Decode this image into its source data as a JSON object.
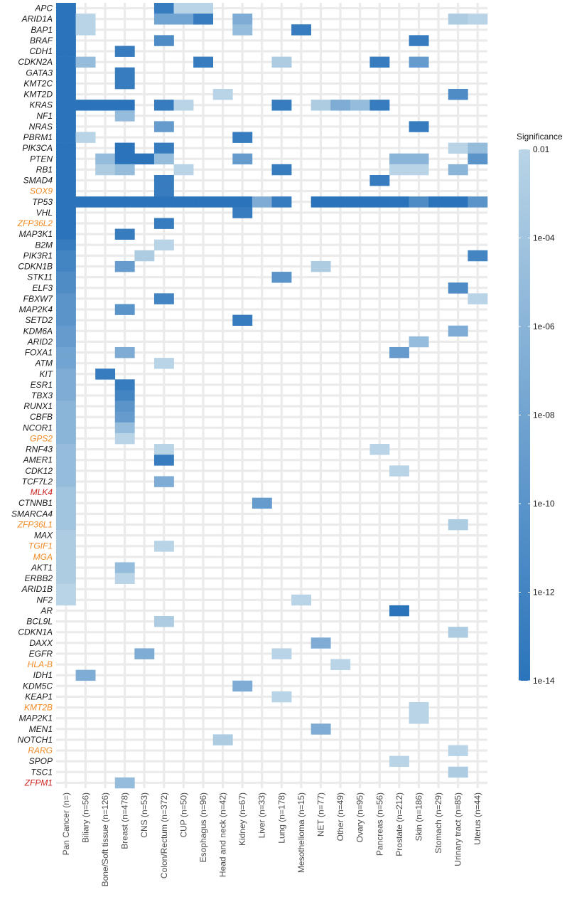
{
  "chart_data": {
    "type": "heatmap",
    "title": "",
    "xlabel": "",
    "ylabel": "",
    "columns": [
      "Pan Cancer (n=)",
      "Biliary (n=56)",
      "Bone/Soft tissue (n=126)",
      "Breast (n=478)",
      "CNS (n=53)",
      "Colon/Rectum (n=372)",
      "CUP (n=50)",
      "Esophagus (n=96)",
      "Head and neck (n=42)",
      "Kidney (n=67)",
      "Liver (n=33)",
      "Lung (n=178)",
      "Mesothelioma (n=15)",
      "NET (n=77)",
      "Other (n=49)",
      "Ovary (n=95)",
      "Pancreas (n=56)",
      "Prostate (n=212)",
      "Skin (n=186)",
      "Stomach (n=29)",
      "Urinary tract (n=85)",
      "Uterus (n=44)"
    ],
    "rows": [
      {
        "gene": "APC",
        "color": "#1a1a1a",
        "cells": [
          [
            0,
            1e-14
          ],
          [
            5,
            1e-13
          ],
          [
            6,
            0.01
          ],
          [
            7,
            0.01
          ]
        ]
      },
      {
        "gene": "ARID1A",
        "color": "#1a1a1a",
        "cells": [
          [
            0,
            1e-14
          ],
          [
            1,
            0.01
          ],
          [
            5,
            1e-08
          ],
          [
            6,
            1e-08
          ],
          [
            7,
            1e-13
          ],
          [
            9,
            1e-07
          ],
          [
            20,
            0.001
          ],
          [
            21,
            0.01
          ]
        ]
      },
      {
        "gene": "BAP1",
        "color": "#1a1a1a",
        "cells": [
          [
            0,
            1e-14
          ],
          [
            1,
            0.01
          ],
          [
            9,
            1e-05
          ],
          [
            12,
            1e-13
          ]
        ]
      },
      {
        "gene": "BRAF",
        "color": "#1a1a1a",
        "cells": [
          [
            0,
            1e-14
          ],
          [
            5,
            1e-11
          ],
          [
            18,
            1e-13
          ]
        ]
      },
      {
        "gene": "CDH1",
        "color": "#1a1a1a",
        "cells": [
          [
            0,
            1e-14
          ],
          [
            3,
            1e-13
          ]
        ]
      },
      {
        "gene": "CDKN2A",
        "color": "#1a1a1a",
        "cells": [
          [
            0,
            1e-14
          ],
          [
            1,
            1e-05
          ],
          [
            7,
            1e-13
          ],
          [
            11,
            0.001
          ],
          [
            16,
            1e-13
          ],
          [
            18,
            1e-09
          ]
        ]
      },
      {
        "gene": "GATA3",
        "color": "#1a1a1a",
        "cells": [
          [
            0,
            1e-14
          ],
          [
            3,
            1e-13
          ]
        ]
      },
      {
        "gene": "KMT2C",
        "color": "#1a1a1a",
        "cells": [
          [
            0,
            1e-14
          ],
          [
            3,
            1e-13
          ]
        ]
      },
      {
        "gene": "KMT2D",
        "color": "#1a1a1a",
        "cells": [
          [
            0,
            1e-14
          ],
          [
            8,
            0.01
          ],
          [
            20,
            1e-11
          ]
        ]
      },
      {
        "gene": "KRAS",
        "color": "#1a1a1a",
        "cells": [
          [
            0,
            1e-14
          ],
          [
            1,
            1e-14
          ],
          [
            2,
            1e-14
          ],
          [
            3,
            1e-14
          ],
          [
            5,
            1e-13
          ],
          [
            6,
            0.01
          ],
          [
            11,
            1e-13
          ],
          [
            13,
            0.001
          ],
          [
            14,
            1e-07
          ],
          [
            15,
            1e-05
          ],
          [
            16,
            1e-13
          ]
        ]
      },
      {
        "gene": "NF1",
        "color": "#1a1a1a",
        "cells": [
          [
            0,
            1e-14
          ],
          [
            3,
            1e-05
          ]
        ]
      },
      {
        "gene": "NRAS",
        "color": "#1a1a1a",
        "cells": [
          [
            0,
            1e-14
          ],
          [
            5,
            1e-09
          ],
          [
            18,
            1e-13
          ]
        ]
      },
      {
        "gene": "PBRM1",
        "color": "#1a1a1a",
        "cells": [
          [
            0,
            1e-14
          ],
          [
            1,
            0.01
          ],
          [
            9,
            1e-13
          ]
        ]
      },
      {
        "gene": "PIK3CA",
        "color": "#1a1a1a",
        "cells": [
          [
            0,
            1e-14
          ],
          [
            3,
            1e-14
          ],
          [
            5,
            1e-13
          ],
          [
            20,
            0.01
          ],
          [
            21,
            1e-05
          ]
        ]
      },
      {
        "gene": "PTEN",
        "color": "#1a1a1a",
        "cells": [
          [
            0,
            1e-14
          ],
          [
            2,
            1e-05
          ],
          [
            3,
            1e-14
          ],
          [
            4,
            1e-14
          ],
          [
            5,
            1e-05
          ],
          [
            9,
            1e-09
          ],
          [
            17,
            1e-06
          ],
          [
            18,
            1e-06
          ],
          [
            21,
            1e-10
          ]
        ]
      },
      {
        "gene": "RB1",
        "color": "#1a1a1a",
        "cells": [
          [
            0,
            1e-14
          ],
          [
            2,
            0.001
          ],
          [
            3,
            1e-05
          ],
          [
            6,
            0.01
          ],
          [
            11,
            1e-13
          ],
          [
            17,
            0.01
          ],
          [
            18,
            0.01
          ],
          [
            20,
            1e-06
          ]
        ]
      },
      {
        "gene": "SMAD4",
        "color": "#1a1a1a",
        "cells": [
          [
            0,
            1e-14
          ],
          [
            5,
            1e-13
          ],
          [
            16,
            1e-13
          ]
        ]
      },
      {
        "gene": "SOX9",
        "color": "#f08a24",
        "cells": [
          [
            0,
            1e-14
          ],
          [
            5,
            1e-13
          ]
        ]
      },
      {
        "gene": "TP53",
        "color": "#1a1a1a",
        "cells": [
          [
            0,
            1e-14
          ],
          [
            1,
            1e-14
          ],
          [
            2,
            1e-14
          ],
          [
            3,
            1e-14
          ],
          [
            4,
            1e-14
          ],
          [
            5,
            1e-14
          ],
          [
            6,
            1e-14
          ],
          [
            7,
            1e-14
          ],
          [
            8,
            1e-14
          ],
          [
            9,
            1e-14
          ],
          [
            10,
            1e-07
          ],
          [
            11,
            1e-13
          ],
          [
            13,
            1e-14
          ],
          [
            14,
            1e-14
          ],
          [
            15,
            1e-14
          ],
          [
            16,
            1e-14
          ],
          [
            17,
            1e-14
          ],
          [
            18,
            1e-11
          ],
          [
            19,
            1e-14
          ],
          [
            20,
            1e-14
          ],
          [
            21,
            1e-10
          ]
        ]
      },
      {
        "gene": "VHL",
        "color": "#1a1a1a",
        "cells": [
          [
            0,
            1e-14
          ],
          [
            9,
            1e-13
          ]
        ]
      },
      {
        "gene": "ZFP36L2",
        "color": "#f08a24",
        "cells": [
          [
            0,
            1e-14
          ],
          [
            5,
            1e-13
          ]
        ]
      },
      {
        "gene": "MAP3K1",
        "color": "#1a1a1a",
        "cells": [
          [
            0,
            1e-14
          ],
          [
            3,
            1e-13
          ]
        ]
      },
      {
        "gene": "B2M",
        "color": "#1a1a1a",
        "cells": [
          [
            0,
            1e-13
          ],
          [
            5,
            0.01
          ]
        ]
      },
      {
        "gene": "PIK3R1",
        "color": "#1a1a1a",
        "cells": [
          [
            0,
            1e-12
          ],
          [
            4,
            0.001
          ],
          [
            21,
            1e-12
          ]
        ]
      },
      {
        "gene": "CDKN1B",
        "color": "#1a1a1a",
        "cells": [
          [
            0,
            1e-12
          ],
          [
            3,
            1e-09
          ],
          [
            13,
            0.001
          ]
        ]
      },
      {
        "gene": "STK11",
        "color": "#1a1a1a",
        "cells": [
          [
            0,
            1e-11
          ],
          [
            11,
            1e-10
          ]
        ]
      },
      {
        "gene": "ELF3",
        "color": "#1a1a1a",
        "cells": [
          [
            0,
            1e-11
          ],
          [
            20,
            1e-11
          ]
        ]
      },
      {
        "gene": "FBXW7",
        "color": "#1a1a1a",
        "cells": [
          [
            0,
            1e-10
          ],
          [
            5,
            1e-12
          ],
          [
            21,
            0.01
          ]
        ]
      },
      {
        "gene": "MAP2K4",
        "color": "#1a1a1a",
        "cells": [
          [
            0,
            1e-10
          ],
          [
            3,
            1e-10
          ]
        ]
      },
      {
        "gene": "SETD2",
        "color": "#1a1a1a",
        "cells": [
          [
            0,
            1e-10
          ],
          [
            9,
            1e-13
          ]
        ]
      },
      {
        "gene": "KDM6A",
        "color": "#1a1a1a",
        "cells": [
          [
            0,
            1e-09
          ],
          [
            20,
            1e-07
          ]
        ]
      },
      {
        "gene": "ARID2",
        "color": "#1a1a1a",
        "cells": [
          [
            0,
            1e-09
          ],
          [
            18,
            1e-05
          ]
        ]
      },
      {
        "gene": "FOXA1",
        "color": "#1a1a1a",
        "cells": [
          [
            0,
            1e-08
          ],
          [
            3,
            1e-07
          ],
          [
            17,
            1e-09
          ]
        ]
      },
      {
        "gene": "ATM",
        "color": "#1a1a1a",
        "cells": [
          [
            0,
            1e-08
          ],
          [
            5,
            0.01
          ]
        ]
      },
      {
        "gene": "KIT",
        "color": "#1a1a1a",
        "cells": [
          [
            0,
            1e-07
          ],
          [
            2,
            1e-13
          ]
        ]
      },
      {
        "gene": "ESR1",
        "color": "#1a1a1a",
        "cells": [
          [
            0,
            1e-07
          ],
          [
            3,
            1e-13
          ]
        ]
      },
      {
        "gene": "TBX3",
        "color": "#1a1a1a",
        "cells": [
          [
            0,
            1e-07
          ],
          [
            3,
            1e-12
          ]
        ]
      },
      {
        "gene": "RUNX1",
        "color": "#1a1a1a",
        "cells": [
          [
            0,
            1e-06
          ],
          [
            3,
            1e-10
          ]
        ]
      },
      {
        "gene": "CBFB",
        "color": "#1a1a1a",
        "cells": [
          [
            0,
            1e-06
          ],
          [
            3,
            1e-09
          ]
        ]
      },
      {
        "gene": "NCOR1",
        "color": "#1a1a1a",
        "cells": [
          [
            0,
            1e-06
          ],
          [
            3,
            1e-05
          ]
        ]
      },
      {
        "gene": "GPS2",
        "color": "#f08a24",
        "cells": [
          [
            0,
            1e-06
          ],
          [
            3,
            0.01
          ]
        ]
      },
      {
        "gene": "RNF43",
        "color": "#1a1a1a",
        "cells": [
          [
            0,
            1e-05
          ],
          [
            5,
            0.01
          ],
          [
            16,
            0.01
          ]
        ]
      },
      {
        "gene": "AMER1",
        "color": "#1a1a1a",
        "cells": [
          [
            0,
            1e-05
          ],
          [
            5,
            1e-13
          ]
        ]
      },
      {
        "gene": "CDK12",
        "color": "#1a1a1a",
        "cells": [
          [
            0,
            1e-05
          ],
          [
            17,
            0.01
          ]
        ]
      },
      {
        "gene": "TCF7L2",
        "color": "#1a1a1a",
        "cells": [
          [
            0,
            1e-05
          ],
          [
            5,
            1e-07
          ]
        ]
      },
      {
        "gene": "MLK4",
        "color": "#cc2222",
        "cells": [
          [
            0,
            0.0001
          ]
        ]
      },
      {
        "gene": "CTNNB1",
        "color": "#1a1a1a",
        "cells": [
          [
            0,
            0.0001
          ],
          [
            10,
            1e-09
          ]
        ]
      },
      {
        "gene": "SMARCA4",
        "color": "#1a1a1a",
        "cells": [
          [
            0,
            0.0001
          ]
        ]
      },
      {
        "gene": "ZFP36L1",
        "color": "#f08a24",
        "cells": [
          [
            0,
            0.0001
          ],
          [
            20,
            0.001
          ]
        ]
      },
      {
        "gene": "MAX",
        "color": "#1a1a1a",
        "cells": [
          [
            0,
            0.001
          ]
        ]
      },
      {
        "gene": "TGIF1",
        "color": "#f08a24",
        "cells": [
          [
            0,
            0.001
          ],
          [
            5,
            0.01
          ]
        ]
      },
      {
        "gene": "MGA",
        "color": "#f08a24",
        "cells": [
          [
            0,
            0.001
          ]
        ]
      },
      {
        "gene": "AKT1",
        "color": "#1a1a1a",
        "cells": [
          [
            0,
            0.001
          ],
          [
            3,
            1e-05
          ]
        ]
      },
      {
        "gene": "ERBB2",
        "color": "#1a1a1a",
        "cells": [
          [
            0,
            0.001
          ],
          [
            3,
            0.01
          ]
        ]
      },
      {
        "gene": "ARID1B",
        "color": "#1a1a1a",
        "cells": [
          [
            0,
            0.01
          ]
        ]
      },
      {
        "gene": "NF2",
        "color": "#1a1a1a",
        "cells": [
          [
            0,
            0.01
          ],
          [
            12,
            0.01
          ]
        ]
      },
      {
        "gene": "AR",
        "color": "#1a1a1a",
        "cells": [
          [
            17,
            1e-14
          ]
        ]
      },
      {
        "gene": "BCL9L",
        "color": "#1a1a1a",
        "cells": [
          [
            5,
            0.001
          ]
        ]
      },
      {
        "gene": "CDKN1A",
        "color": "#1a1a1a",
        "cells": [
          [
            20,
            0.001
          ]
        ]
      },
      {
        "gene": "DAXX",
        "color": "#1a1a1a",
        "cells": [
          [
            13,
            1e-07
          ]
        ]
      },
      {
        "gene": "EGFR",
        "color": "#1a1a1a",
        "cells": [
          [
            4,
            1e-07
          ],
          [
            11,
            0.01
          ]
        ]
      },
      {
        "gene": "HLA-B",
        "color": "#f08a24",
        "cells": [
          [
            14,
            0.01
          ]
        ]
      },
      {
        "gene": "IDH1",
        "color": "#1a1a1a",
        "cells": [
          [
            1,
            1e-07
          ]
        ]
      },
      {
        "gene": "KDM5C",
        "color": "#1a1a1a",
        "cells": [
          [
            9,
            1e-07
          ]
        ]
      },
      {
        "gene": "KEAP1",
        "color": "#1a1a1a",
        "cells": [
          [
            11,
            0.01
          ]
        ]
      },
      {
        "gene": "KMT2B",
        "color": "#f08a24",
        "cells": [
          [
            18,
            0.01
          ]
        ]
      },
      {
        "gene": "MAP2K1",
        "color": "#1a1a1a",
        "cells": [
          [
            18,
            0.01
          ]
        ]
      },
      {
        "gene": "MEN1",
        "color": "#1a1a1a",
        "cells": [
          [
            13,
            1e-07
          ]
        ]
      },
      {
        "gene": "NOTCH1",
        "color": "#1a1a1a",
        "cells": [
          [
            8,
            0.001
          ]
        ]
      },
      {
        "gene": "RARG",
        "color": "#f08a24",
        "cells": [
          [
            20,
            0.01
          ]
        ]
      },
      {
        "gene": "SPOP",
        "color": "#1a1a1a",
        "cells": [
          [
            17,
            0.01
          ]
        ]
      },
      {
        "gene": "TSC1",
        "color": "#1a1a1a",
        "cells": [
          [
            20,
            0.001
          ]
        ]
      },
      {
        "gene": "ZFPM1",
        "color": "#cc2222",
        "cells": [
          [
            3,
            1e-05
          ]
        ]
      }
    ],
    "legend": {
      "title": "Significance",
      "ticks": [
        "0.01",
        "1e-04",
        "1e-06",
        "1e-08",
        "1e-10",
        "1e-12",
        "1e-14"
      ],
      "tick_values": [
        0.01,
        0.0001,
        1e-06,
        1e-08,
        1e-10,
        1e-12,
        1e-14
      ],
      "color_low": "#2b74bb",
      "color_high": "#b9d4e6",
      "placement": "right"
    },
    "grid_color": "#ebebeb",
    "grid": true
  }
}
